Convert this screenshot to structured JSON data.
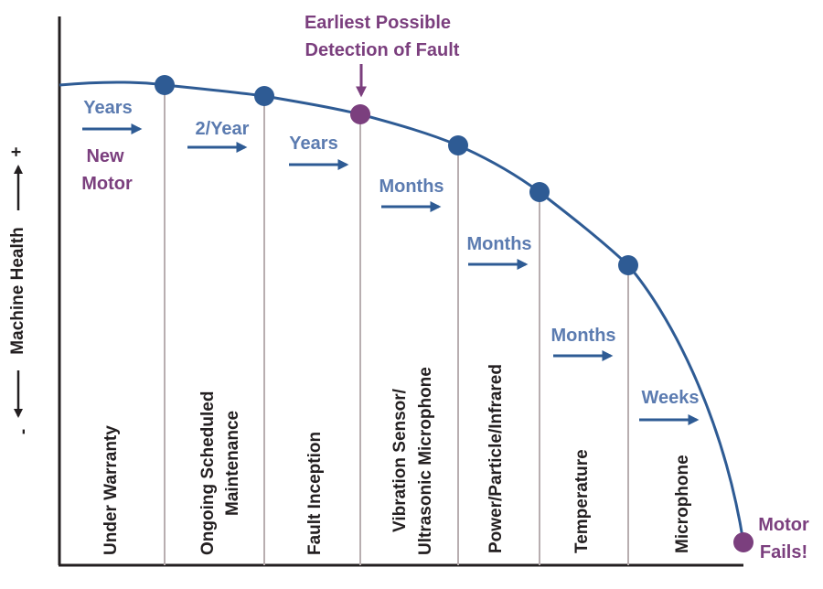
{
  "colors": {
    "curve": "#2e5b94",
    "point_blue": "#2e5b94",
    "point_purple": "#7b3f7e",
    "duration_text": "#5b7bb0",
    "accent_text": "#7b3f7e",
    "divider": "#b8aeb0",
    "axis": "#231f20"
  },
  "y_axis": {
    "label": "Machine Health",
    "plus": "+",
    "minus": "-"
  },
  "annotations": {
    "new_motor": [
      "New",
      "Motor"
    ],
    "earliest_detection": [
      "Earliest Possible",
      "Detection of Fault"
    ],
    "motor_fails": [
      "Motor",
      "Fails!"
    ]
  },
  "durations": [
    "Years",
    "2/Year",
    "Years",
    "Months",
    "Months",
    "Months",
    "Weeks"
  ],
  "stages": [
    [
      "Under Warranty"
    ],
    [
      "Ongoing Scheduled",
      "Maintenance"
    ],
    [
      "Fault Inception"
    ],
    [
      "Vibration Sensor/",
      "Ultrasonic Microphone"
    ],
    [
      "Power/Particle/Infrared"
    ],
    [
      "Temperature"
    ],
    [
      "Microphone"
    ]
  ]
}
